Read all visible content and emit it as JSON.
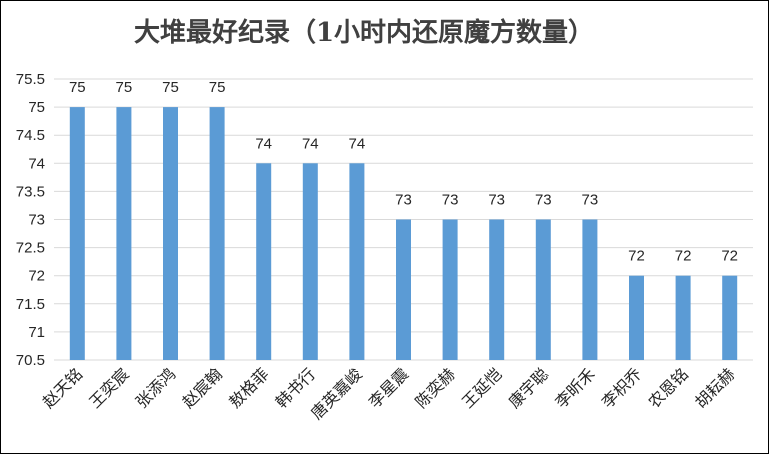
{
  "chart_data": {
    "type": "bar",
    "title": "大堆最好纪录（1小时内还原魔方数量）",
    "categories": [
      "赵天铭",
      "王奕宸",
      "张添鸿",
      "赵宸翰",
      "敖格菲",
      "韩书行",
      "唐英嘉峻",
      "李星震",
      "陈奕赫",
      "王延恺",
      "康宇聪",
      "李昕禾",
      "李枳乔",
      "农恩铭",
      "胡耘赫"
    ],
    "values": [
      75,
      75,
      75,
      75,
      74,
      74,
      74,
      73,
      73,
      73,
      73,
      73,
      72,
      72,
      72
    ],
    "ylim": [
      70.5,
      75.5
    ],
    "yticks": [
      "70.5",
      "71",
      "71.5",
      "72",
      "72.5",
      "73",
      "73.5",
      "74",
      "74.5",
      "75",
      "75.5"
    ],
    "grid": true,
    "data_labels": true,
    "bar_color": "#5b9bd5"
  }
}
